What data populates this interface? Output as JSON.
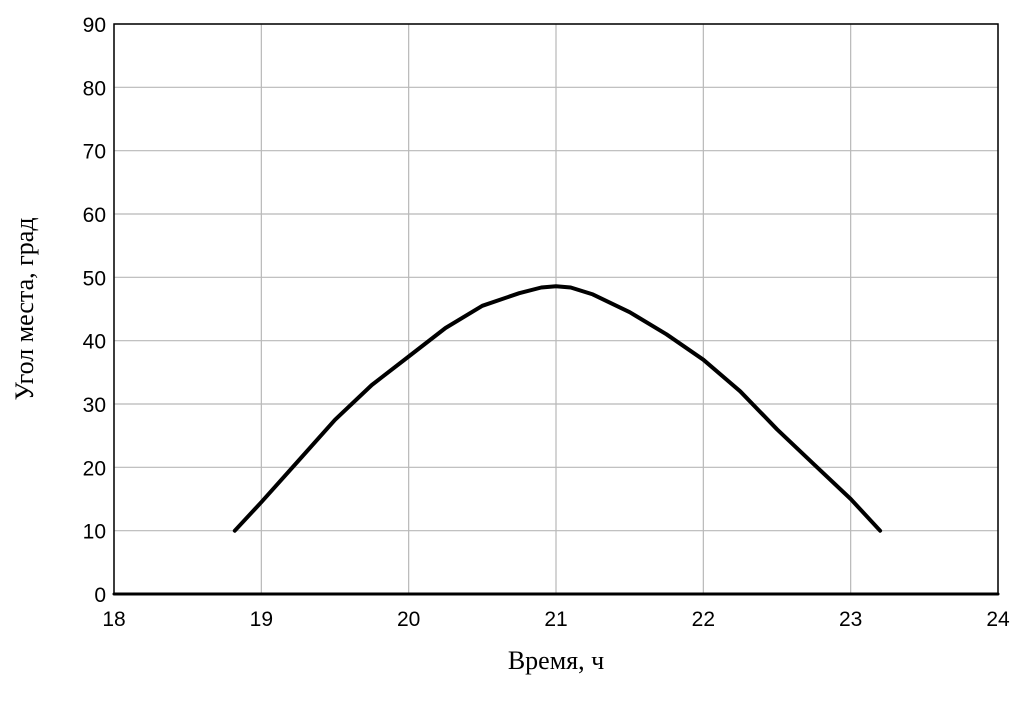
{
  "chart_data": {
    "type": "line",
    "title": "",
    "xlabel": "Время, ч",
    "ylabel": "Угол места, град",
    "xlim": [
      18,
      24
    ],
    "ylim": [
      0,
      90
    ],
    "x_ticks": [
      18,
      19,
      20,
      21,
      22,
      23,
      24
    ],
    "y_ticks": [
      0,
      10,
      20,
      30,
      40,
      50,
      60,
      70,
      80,
      90
    ],
    "grid": true,
    "series": [
      {
        "color": "#000000",
        "x": [
          18.82,
          19.0,
          19.25,
          19.5,
          19.75,
          20.0,
          20.25,
          20.5,
          20.75,
          20.9,
          21.0,
          21.1,
          21.25,
          21.5,
          21.75,
          22.0,
          22.25,
          22.5,
          22.75,
          23.0,
          23.2
        ],
        "y": [
          10,
          14.5,
          21,
          27.5,
          33,
          37.5,
          42,
          45.5,
          47.5,
          48.4,
          48.6,
          48.4,
          47.3,
          44.5,
          41,
          37,
          32,
          26,
          20.5,
          15,
          10
        ]
      },
      {
        "color": "#000000",
        "x": [
          18,
          24
        ],
        "y": [
          0,
          0
        ]
      }
    ]
  }
}
